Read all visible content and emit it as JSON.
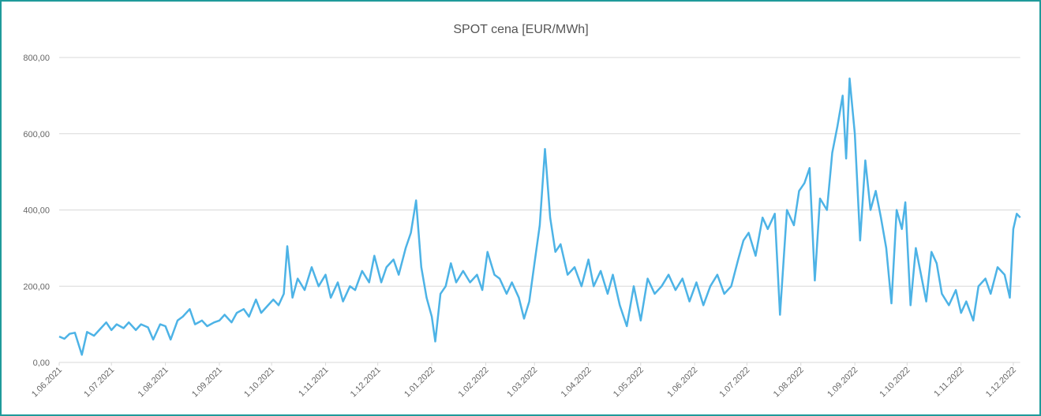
{
  "chart_data": {
    "type": "line",
    "title": "SPOT cena [EUR/MWh]",
    "color": "#4db3e6",
    "grid": true,
    "ylim": [
      0,
      800
    ],
    "yticks": [
      {
        "value": 0,
        "label": "0,00"
      },
      {
        "value": 200,
        "label": "200,00"
      },
      {
        "value": 400,
        "label": "400,00"
      },
      {
        "value": 600,
        "label": "600,00"
      },
      {
        "value": 800,
        "label": "800,00"
      }
    ],
    "xlim": [
      "1.06.2021",
      "5.12.2022"
    ],
    "xticks": [
      "1.06.2021",
      "1.07.2021",
      "1.08.2021",
      "1.09.2021",
      "1.10.2021",
      "1.11.2021",
      "1.12.2021",
      "1.01.2022",
      "1.02.2022",
      "1.03.2022",
      "1.04.2022",
      "1.05.2022",
      "1.06.2022",
      "1.07.2022",
      "1.08.2022",
      "1.09.2022",
      "1.10.2022",
      "1.11.2022",
      "1.12.2022"
    ],
    "x": [
      "1.06.2021",
      "4.06.2021",
      "7.06.2021",
      "10.06.2021",
      "14.06.2021",
      "17.06.2021",
      "21.06.2021",
      "25.06.2021",
      "28.06.2021",
      "1.07.2021",
      "4.07.2021",
      "8.07.2021",
      "11.07.2021",
      "15.07.2021",
      "18.07.2021",
      "22.07.2021",
      "25.07.2021",
      "29.07.2021",
      "1.08.2021",
      "4.08.2021",
      "8.08.2021",
      "11.08.2021",
      "15.08.2021",
      "18.08.2021",
      "22.08.2021",
      "25.08.2021",
      "29.08.2021",
      "1.09.2021",
      "4.09.2021",
      "8.09.2021",
      "11.09.2021",
      "15.09.2021",
      "18.09.2021",
      "22.09.2021",
      "25.09.2021",
      "29.09.2021",
      "2.10.2021",
      "5.10.2021",
      "8.10.2021",
      "10.10.2021",
      "13.10.2021",
      "16.10.2021",
      "20.10.2021",
      "24.10.2021",
      "28.10.2021",
      "1.11.2021",
      "4.11.2021",
      "8.11.2021",
      "11.11.2021",
      "15.11.2021",
      "18.11.2021",
      "22.11.2021",
      "26.11.2021",
      "29.11.2021",
      "3.12.2021",
      "6.12.2021",
      "10.12.2021",
      "13.12.2021",
      "17.12.2021",
      "20.12.2021",
      "23.12.2021",
      "26.12.2021",
      "29.12.2021",
      "1.01.2022",
      "3.01.2022",
      "6.01.2022",
      "9.01.2022",
      "12.01.2022",
      "15.01.2022",
      "19.01.2022",
      "23.01.2022",
      "27.01.2022",
      "30.01.2022",
      "2.02.2022",
      "6.02.2022",
      "9.02.2022",
      "13.02.2022",
      "16.02.2022",
      "20.02.2022",
      "23.02.2022",
      "26.02.2022",
      "1.03.2022",
      "4.03.2022",
      "7.03.2022",
      "10.03.2022",
      "13.03.2022",
      "16.03.2022",
      "20.03.2022",
      "24.03.2022",
      "28.03.2022",
      "1.04.2022",
      "4.04.2022",
      "8.04.2022",
      "12.04.2022",
      "15.04.2022",
      "19.04.2022",
      "23.04.2022",
      "27.04.2022",
      "1.05.2022",
      "5.05.2022",
      "9.05.2022",
      "13.05.2022",
      "17.05.2022",
      "21.05.2022",
      "25.05.2022",
      "29.05.2022",
      "2.06.2022",
      "6.06.2022",
      "10.06.2022",
      "14.06.2022",
      "18.06.2022",
      "22.06.2022",
      "26.06.2022",
      "29.06.2022",
      "2.07.2022",
      "6.07.2022",
      "10.07.2022",
      "13.07.2022",
      "17.07.2022",
      "20.07.2022",
      "24.07.2022",
      "28.07.2022",
      "31.07.2022",
      "3.08.2022",
      "6.08.2022",
      "9.08.2022",
      "12.08.2022",
      "16.08.2022",
      "19.08.2022",
      "22.08.2022",
      "25.08.2022",
      "27.08.2022",
      "29.08.2022",
      "1.09.2022",
      "4.09.2022",
      "7.09.2022",
      "10.09.2022",
      "13.09.2022",
      "16.09.2022",
      "19.09.2022",
      "22.09.2022",
      "25.09.2022",
      "28.09.2022",
      "30.09.2022",
      "3.10.2022",
      "6.10.2022",
      "9.10.2022",
      "12.10.2022",
      "15.10.2022",
      "18.10.2022",
      "21.10.2022",
      "25.10.2022",
      "29.10.2022",
      "1.11.2022",
      "4.11.2022",
      "8.11.2022",
      "11.11.2022",
      "15.11.2022",
      "18.11.2022",
      "22.11.2022",
      "26.11.2022",
      "29.11.2022",
      "1.12.2022",
      "3.12.2022",
      "5.12.2022"
    ],
    "values": [
      68,
      62,
      75,
      78,
      20,
      80,
      70,
      90,
      105,
      85,
      100,
      90,
      105,
      85,
      100,
      92,
      60,
      100,
      95,
      60,
      110,
      120,
      140,
      100,
      110,
      95,
      105,
      110,
      125,
      105,
      130,
      140,
      120,
      165,
      130,
      150,
      165,
      150,
      180,
      305,
      170,
      220,
      190,
      250,
      200,
      230,
      170,
      210,
      160,
      200,
      190,
      240,
      210,
      280,
      210,
      250,
      270,
      230,
      300,
      340,
      425,
      250,
      170,
      120,
      55,
      180,
      200,
      260,
      210,
      240,
      210,
      230,
      190,
      290,
      230,
      220,
      180,
      210,
      170,
      115,
      160,
      260,
      360,
      560,
      380,
      290,
      310,
      230,
      250,
      200,
      270,
      200,
      240,
      180,
      230,
      150,
      95,
      200,
      110,
      220,
      180,
      200,
      230,
      190,
      220,
      160,
      210,
      150,
      200,
      230,
      180,
      200,
      270,
      320,
      340,
      280,
      380,
      350,
      390,
      125,
      400,
      360,
      450,
      470,
      510,
      215,
      430,
      400,
      550,
      620,
      700,
      535,
      745,
      600,
      320,
      530,
      400,
      450,
      380,
      300,
      155,
      400,
      350,
      420,
      150,
      300,
      230,
      160,
      290,
      260,
      180,
      150,
      190,
      130,
      160,
      110,
      200,
      220,
      180,
      250,
      230,
      170,
      350,
      390,
      380
    ]
  }
}
